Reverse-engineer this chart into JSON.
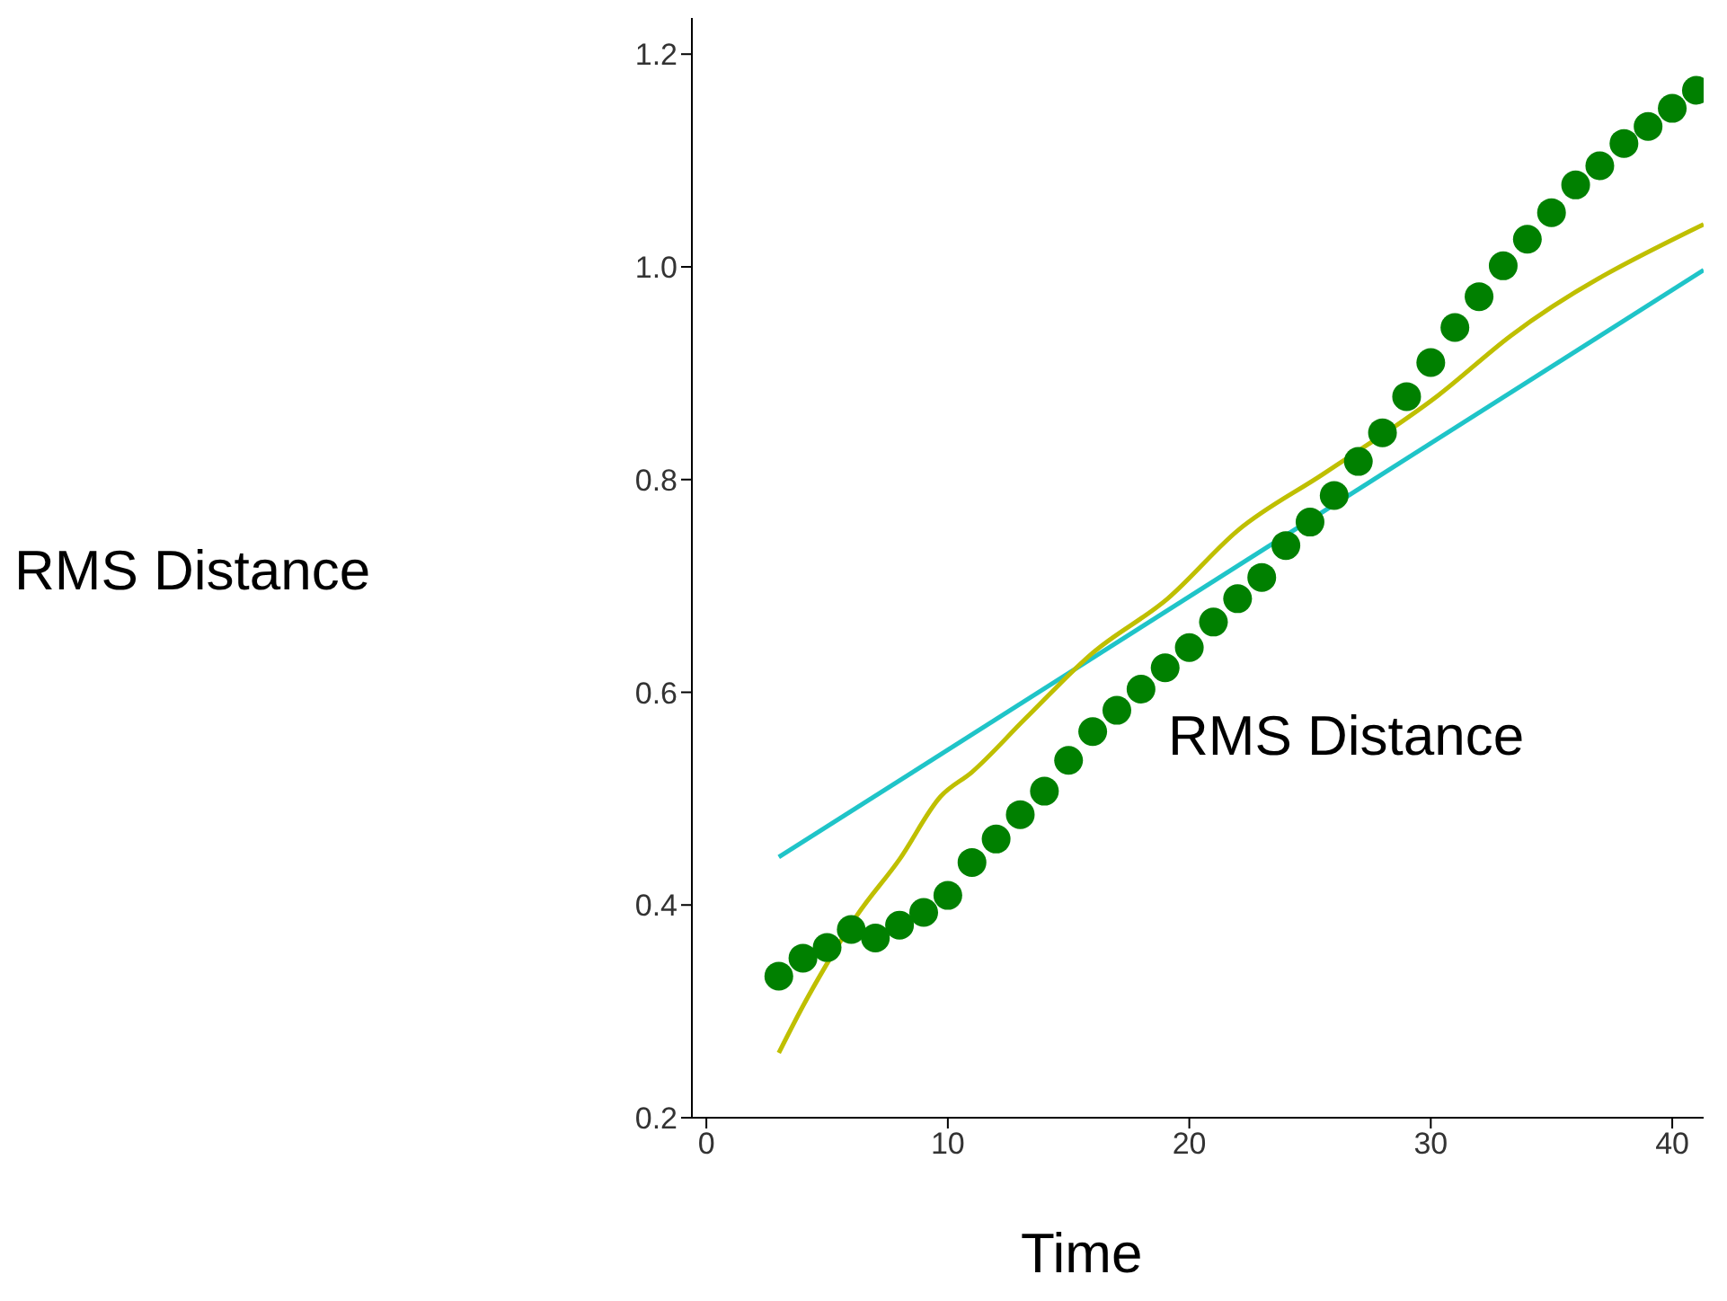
{
  "chart_data": {
    "type": "scatter",
    "xlabel": "Time",
    "ylabel": "RMS Distance",
    "annotations": [
      "RMS Distance"
    ],
    "xlim": [
      -0.6,
      41.3
    ],
    "xticks": [
      0,
      10,
      20,
      30,
      40
    ],
    "ylim": [
      0.2,
      1.234
    ],
    "yticks": [
      0.2,
      0.4,
      0.6,
      0.8,
      {
        "value": 1,
        "label": "1.0"
      },
      1.2
    ],
    "grid": false,
    "legend": false,
    "marker": "circle",
    "series": [
      {
        "color": "#008000",
        "x": [
          3,
          4,
          5,
          6,
          7,
          8,
          9,
          10,
          11,
          12,
          13,
          14,
          15,
          16,
          17,
          18,
          19,
          20,
          21,
          22,
          23,
          24,
          25,
          26,
          27,
          28,
          29,
          30,
          31,
          32,
          33,
          34,
          35,
          36,
          37,
          38,
          39,
          40,
          41
        ],
        "values": [
          0.333,
          0.35,
          0.36,
          0.377,
          0.369,
          0.381,
          0.393,
          0.409,
          0.44,
          0.462,
          0.485,
          0.507,
          0.536,
          0.563,
          0.583,
          0.603,
          0.623,
          0.642,
          0.666,
          0.688,
          0.708,
          0.738,
          0.76,
          0.785,
          0.817,
          0.844,
          0.878,
          0.91,
          0.943,
          0.972,
          1.001,
          1.026,
          1.051,
          1.077,
          1.095,
          1.116,
          1.132,
          1.149,
          1.166
        ]
      },
      {
        "type": "line",
        "color": "#1fc4c8",
        "marker": "none",
        "x": [
          3,
          41.3
        ],
        "values": [
          0.445,
          0.997
        ]
      },
      {
        "type": "line",
        "color": "#bfbf00",
        "marker": "none",
        "x": [
          3,
          4,
          5,
          6.2,
          8,
          9.7,
          11,
          13.2,
          16,
          19.1,
          22,
          25.6,
          30.3,
          33.3,
          41.3
        ],
        "values": [
          0.261,
          0.305,
          0.345,
          0.389,
          0.443,
          0.502,
          0.525,
          0.575,
          0.637,
          0.688,
          0.752,
          0.806,
          0.879,
          0.935,
          1.04
        ]
      }
    ]
  }
}
